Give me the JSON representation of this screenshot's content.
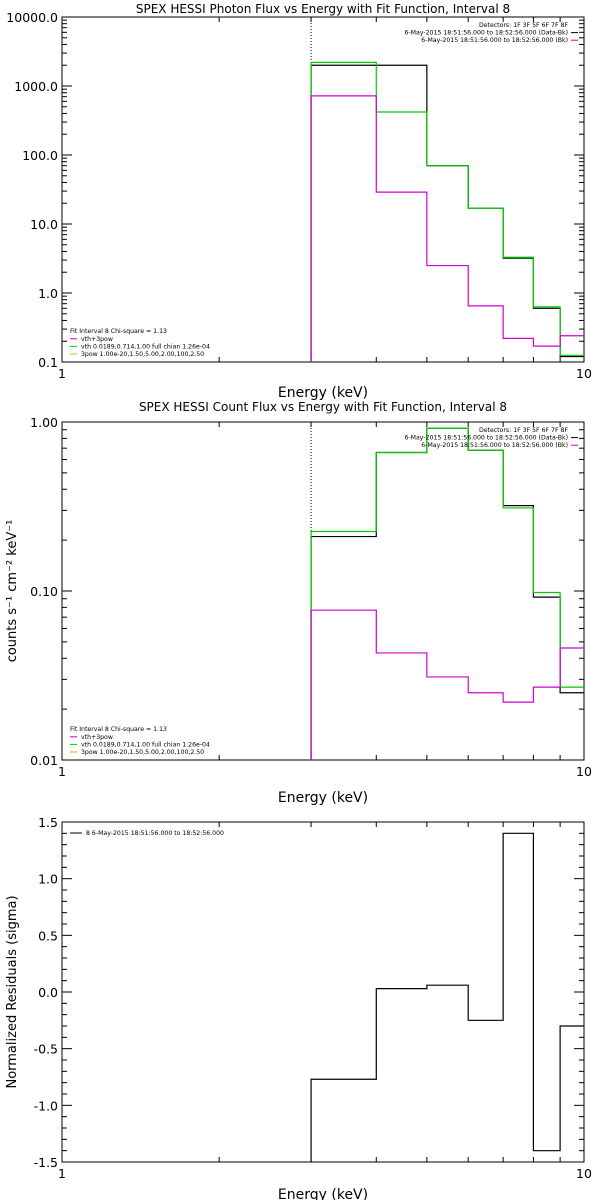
{
  "chart_data": [
    {
      "type": "line",
      "title": "SPEX HESSI Photon Flux vs Energy with Fit Function, Interval 8",
      "xlabel": "Energy (keV)",
      "ylabel": "",
      "xscale": "log",
      "yscale": "log",
      "xlim": [
        1,
        10
      ],
      "ylim": [
        0.1,
        10000
      ],
      "x_ticks": [
        "1",
        "10"
      ],
      "y_ticks": [
        "0.1",
        "1.0",
        "10.0",
        "100.0",
        "1000.0",
        "10000.0"
      ],
      "vline_x": 3,
      "legend_top": {
        "position": "top-right",
        "lines": [
          "Detectors: 1F 3F 5F 6F 7F 8F",
          "6-May-2015 18:51:56.000 to 18:52:56.000 (Data-Bk)",
          "6-May-2015 18:51:56.000 to 18:52:56.000 (Bk)"
        ],
        "colors": [
          "#000000",
          "#000000",
          "#d000d0"
        ]
      },
      "legend_bottom": {
        "position": "bottom-left",
        "lines": [
          "Fit Interval 8   Chi-square = 1.13",
          "vth+3pow",
          "vth 0.0189,0.714,1.00  full chian 1.26e-04",
          "3pow 1.00e-20,1.50,5.00,2.00,100,2.50"
        ],
        "colors": [
          "#000000",
          "#d000d0",
          "#00cc00",
          "#e0b000"
        ]
      },
      "series": [
        {
          "color": "#000000",
          "edges": [
            3,
            4,
            5,
            6,
            7,
            8,
            9,
            10
          ],
          "values": [
            2000,
            2000,
            70,
            17,
            3.2,
            0.6,
            0.12
          ]
        },
        {
          "color": "#00cc00",
          "edges": [
            3,
            4,
            5,
            6,
            7,
            8,
            9,
            10
          ],
          "values": [
            2200,
            420,
            70,
            17,
            3.3,
            0.63,
            0.125
          ]
        },
        {
          "color": "#d000d0",
          "edges": [
            3,
            4,
            5,
            6,
            7,
            8,
            9,
            10
          ],
          "values": [
            720,
            29,
            2.5,
            0.65,
            0.22,
            0.17,
            0.24
          ]
        }
      ]
    },
    {
      "type": "line",
      "title": "SPEX HESSI Count Flux vs Energy with Fit Function, Interval 8",
      "xlabel": "Energy (keV)",
      "ylabel": "counts s⁻¹ cm⁻² keV⁻¹",
      "xscale": "log",
      "yscale": "log",
      "xlim": [
        1,
        10
      ],
      "ylim": [
        0.01,
        1.0
      ],
      "x_ticks": [
        "1",
        "10"
      ],
      "y_ticks": [
        "0.01",
        "0.10",
        "1.00"
      ],
      "vline_x": 3,
      "legend_top": {
        "position": "top-right",
        "lines": [
          "Detectors: 1F 3F 5F 6F 7F 8F",
          "6-May-2015 18:51:56.000 to 18:52:56.000 (Data-Bk)",
          "6-May-2015 18:51:56.000 to 18:52:56.000 (Bk)"
        ],
        "colors": [
          "#000000",
          "#000000",
          "#d000d0"
        ]
      },
      "legend_bottom": {
        "position": "bottom-left",
        "lines": [
          "Fit Interval 8   Chi-square = 1.13",
          "vth+3pow",
          "vth 0.0189,0.714,1.00  full chian 1.26e-04",
          "3pow 1.00e-20,1.50,5.00,2.00,100,2.50"
        ],
        "colors": [
          "#000000",
          "#d000d0",
          "#00cc00",
          "#e0b000"
        ]
      },
      "series": [
        {
          "color": "#000000",
          "edges": [
            3,
            4,
            5,
            6,
            7,
            8,
            9,
            10
          ],
          "values": [
            0.21,
            0.66,
            0.92,
            0.68,
            0.32,
            0.092,
            0.025
          ]
        },
        {
          "color": "#00cc00",
          "edges": [
            3,
            4,
            5,
            6,
            7,
            8,
            9,
            10
          ],
          "values": [
            0.225,
            0.66,
            0.92,
            0.68,
            0.31,
            0.098,
            0.027
          ]
        },
        {
          "color": "#d000d0",
          "edges": [
            3,
            4,
            5,
            6,
            7,
            8,
            9,
            10
          ],
          "values": [
            0.077,
            0.043,
            0.031,
            0.025,
            0.022,
            0.027,
            0.046
          ]
        }
      ]
    },
    {
      "type": "line",
      "title": "",
      "xlabel": "Energy (keV)",
      "ylabel": "Normalized Residuals (sigma)",
      "xscale": "log",
      "yscale": "linear",
      "xlim": [
        1,
        10
      ],
      "ylim": [
        -1.5,
        1.5
      ],
      "x_ticks": [
        "1",
        "10"
      ],
      "y_ticks": [
        "-1.5",
        "-1.0",
        "-0.5",
        "0.0",
        "0.5",
        "1.0",
        "1.5"
      ],
      "legend_top": {
        "position": "top-left",
        "lines": [
          "8  6-May-2015 18:51:56.000 to 18:52:56.000"
        ],
        "colors": [
          "#000000"
        ]
      },
      "series": [
        {
          "color": "#000000",
          "edges": [
            3,
            4,
            5,
            6,
            7,
            8,
            9,
            10
          ],
          "values": [
            -0.77,
            0.03,
            0.06,
            -0.25,
            1.4,
            -1.4,
            -0.3
          ]
        }
      ]
    }
  ]
}
